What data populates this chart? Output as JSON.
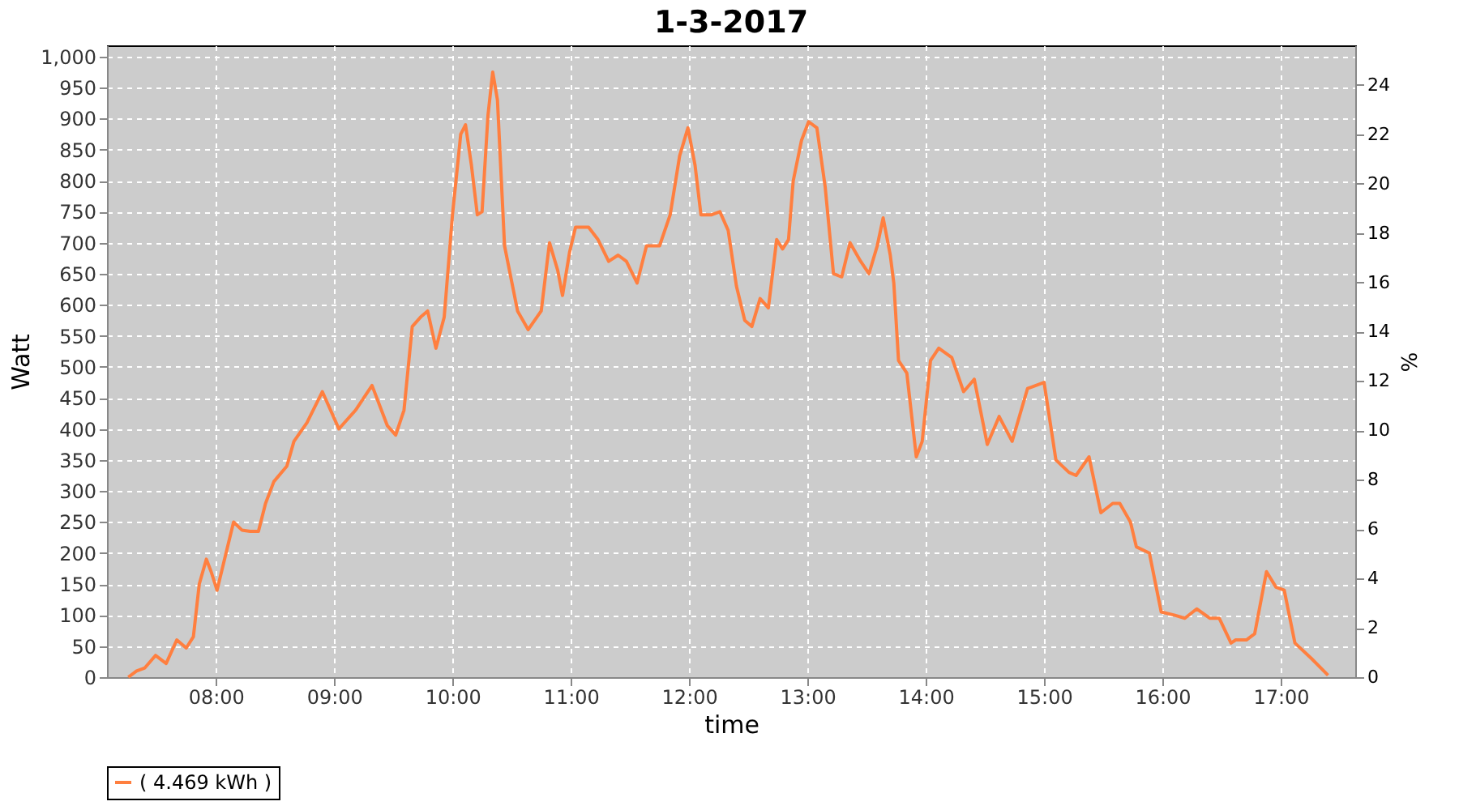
{
  "chart_data": {
    "type": "line",
    "title": "1-3-2017",
    "xlabel": "time",
    "ylabel": "Watt",
    "y2label": "%",
    "xlim": [
      7.08,
      17.63
    ],
    "xticks": [
      {
        "value": 8,
        "label": "08:00"
      },
      {
        "value": 9,
        "label": "09:00"
      },
      {
        "value": 10,
        "label": "10:00"
      },
      {
        "value": 11,
        "label": "11:00"
      },
      {
        "value": 12,
        "label": "12:00"
      },
      {
        "value": 13,
        "label": "13:00"
      },
      {
        "value": 14,
        "label": "14:00"
      },
      {
        "value": 15,
        "label": "15:00"
      },
      {
        "value": 16,
        "label": "16:00"
      },
      {
        "value": 17,
        "label": "17:00"
      }
    ],
    "ylim": [
      0,
      1018
    ],
    "yticks": [
      0,
      50,
      100,
      150,
      200,
      250,
      300,
      350,
      400,
      450,
      500,
      550,
      600,
      650,
      700,
      750,
      800,
      850,
      900,
      950,
      {
        "value": 1000,
        "label": "1,000"
      }
    ],
    "y2lim": [
      0,
      25.6
    ],
    "y2ticks": [
      0,
      2,
      4,
      6,
      8,
      10,
      12,
      14,
      16,
      18,
      20,
      22,
      24
    ],
    "grid": true,
    "legend": "bottom",
    "marker": "none",
    "line_style": "solid",
    "x": [
      7.26,
      7.33,
      7.4,
      7.49,
      7.58,
      7.67,
      7.75,
      7.81,
      7.86,
      7.92,
      7.96,
      8.01,
      8.08,
      8.15,
      8.22,
      8.29,
      8.36,
      8.42,
      8.49,
      8.6,
      8.66,
      8.77,
      8.9,
      9.04,
      9.18,
      9.32,
      9.45,
      9.52,
      9.59,
      9.66,
      9.73,
      9.79,
      9.86,
      9.93,
      10.0,
      10.07,
      10.11,
      10.16,
      10.21,
      10.25,
      10.3,
      10.34,
      10.38,
      10.44,
      10.55,
      10.64,
      10.75,
      10.82,
      10.89,
      10.93,
      10.99,
      11.04,
      11.15,
      11.23,
      11.32,
      11.4,
      11.47,
      11.56,
      11.64,
      11.75,
      11.84,
      11.92,
      11.99,
      12.05,
      12.1,
      12.19,
      12.26,
      12.33,
      12.4,
      12.47,
      12.53,
      12.6,
      12.67,
      12.74,
      12.79,
      12.84,
      12.88,
      12.95,
      13.01,
      13.08,
      13.15,
      13.22,
      13.29,
      13.36,
      13.45,
      13.52,
      13.59,
      13.64,
      13.7,
      13.73,
      13.77,
      13.84,
      13.92,
      13.97,
      14.04,
      14.11,
      14.22,
      14.32,
      14.41,
      14.52,
      14.62,
      14.73,
      14.86,
      15.0,
      15.1,
      15.21,
      15.27,
      15.38,
      15.48,
      15.58,
      15.64,
      15.73,
      15.78,
      15.89,
      15.99,
      16.1,
      16.19,
      16.29,
      16.4,
      16.48,
      16.58,
      16.62,
      16.71,
      16.78,
      16.88,
      16.96,
      17.03,
      17.12,
      17.26,
      17.4
    ],
    "series": [
      {
        "name": "( 4.469 kWh )",
        "color": "#ff7f3f",
        "values": [
          0,
          10,
          15,
          35,
          22,
          60,
          47,
          65,
          150,
          190,
          170,
          140,
          195,
          250,
          237,
          235,
          235,
          280,
          315,
          340,
          380,
          410,
          460,
          400,
          430,
          470,
          405,
          390,
          430,
          565,
          580,
          590,
          530,
          580,
          745,
          875,
          890,
          825,
          745,
          750,
          905,
          975,
          930,
          695,
          590,
          560,
          590,
          700,
          655,
          615,
          685,
          725,
          725,
          705,
          670,
          680,
          670,
          635,
          695,
          695,
          745,
          840,
          885,
          825,
          745,
          745,
          750,
          720,
          630,
          575,
          565,
          610,
          595,
          705,
          690,
          705,
          800,
          865,
          895,
          885,
          790,
          650,
          645,
          700,
          670,
          650,
          695,
          740,
          680,
          635,
          510,
          490,
          355,
          380,
          510,
          530,
          515,
          460,
          480,
          375,
          420,
          380,
          465,
          475,
          350,
          330,
          325,
          355,
          265,
          280,
          280,
          250,
          210,
          200,
          105,
          100,
          95,
          110,
          95,
          95,
          55,
          60,
          60,
          70,
          170,
          145,
          140,
          55,
          30,
          3
        ]
      }
    ]
  }
}
